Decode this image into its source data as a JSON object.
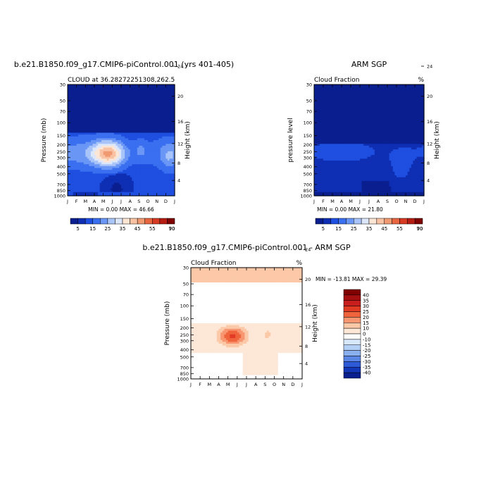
{
  "chart_data": [
    {
      "type": "heatmap",
      "title": "b.e21.B1850.f09_g17.CMIP6-piControl.001 (yrs 401-405)",
      "subtitle_left": "CLOUD at 36.28272251308,262.5",
      "subtitle_right": "",
      "ylabel": "Pressure (mb)",
      "y2label": "Height (km)",
      "stats": "MIN =    0.00 MAX =   46.66",
      "x_ticks": [
        "J",
        "F",
        "M",
        "A",
        "M",
        "J",
        "J",
        "A",
        "S",
        "O",
        "N",
        "D",
        "J"
      ],
      "p_ticks": [
        "30",
        "50",
        "70",
        "100",
        "150",
        "200",
        "250",
        "300",
        "400",
        "500",
        "700",
        "850",
        "1000"
      ],
      "h_ticks": [
        "4",
        "8",
        "12",
        "16",
        "20",
        "24"
      ],
      "min": 0.0,
      "max": 46.66,
      "colorbar_labels": [
        "5",
        "15",
        "25",
        "35",
        "45",
        "55",
        "70",
        "90"
      ]
    },
    {
      "type": "heatmap",
      "title": "ARM SGP",
      "subtitle_left": "Cloud Fraction",
      "subtitle_right": "%",
      "ylabel": "pressure level",
      "y2label": "Height (km)",
      "stats": "MIN =    0.00 MAX =   21.80",
      "x_ticks": [
        "J",
        "F",
        "M",
        "A",
        "M",
        "J",
        "J",
        "A",
        "S",
        "O",
        "N",
        "D",
        "J"
      ],
      "p_ticks": [
        "30",
        "50",
        "70",
        "100",
        "150",
        "200",
        "250",
        "300",
        "400",
        "500",
        "700",
        "850",
        "1000"
      ],
      "h_ticks": [
        "4",
        "8",
        "12",
        "16",
        "20",
        "24"
      ],
      "min": 0.0,
      "max": 21.8,
      "colorbar_labels": [
        "5",
        "15",
        "25",
        "35",
        "45",
        "55",
        "70",
        "90"
      ]
    },
    {
      "type": "heatmap",
      "title": "b.e21.B1850.f09_g17.CMIP6-piControl.001 - ARM SGP",
      "subtitle_left": "Cloud Fraction",
      "subtitle_right": "%",
      "ylabel": "Pressure (mb)",
      "y2label": "Height (km)",
      "stats": "MIN = -13.81 MAX =  29.39",
      "x_ticks": [
        "J",
        "F",
        "M",
        "A",
        "M",
        "J",
        "J",
        "A",
        "S",
        "O",
        "N",
        "D",
        "J"
      ],
      "p_ticks": [
        "30",
        "50",
        "70",
        "100",
        "150",
        "200",
        "250",
        "300",
        "400",
        "500",
        "700",
        "850",
        "1000"
      ],
      "h_ticks": [
        "4",
        "8",
        "12",
        "16",
        "20",
        "24"
      ],
      "min": -13.81,
      "max": 29.39,
      "colorbar_labels": [
        "40",
        "35",
        "30",
        "25",
        "20",
        "15",
        "10",
        "0",
        "-10",
        "-15",
        "-20",
        "-25",
        "-30",
        "-35",
        "-40"
      ]
    }
  ],
  "colors": {
    "seq": [
      "#0a1f8f",
      "#0e2fb3",
      "#1f4fe0",
      "#3a6ff0",
      "#6a96f5",
      "#a9c4f8",
      "#dde7fb",
      "#fbe6d6",
      "#f8c2a3",
      "#f19a72",
      "#e8663f",
      "#d63a22",
      "#b51c12",
      "#800000"
    ],
    "div": [
      "#800000",
      "#a50f0f",
      "#c81e1e",
      "#e23b24",
      "#f0643d",
      "#f79670",
      "#fcc9a8",
      "#fde7d7",
      "#ffffff",
      "#d8e8fb",
      "#b3cff5",
      "#8bb0ee",
      "#5c86e6",
      "#2f5ad7",
      "#1437b8",
      "#0a1f8f"
    ]
  }
}
